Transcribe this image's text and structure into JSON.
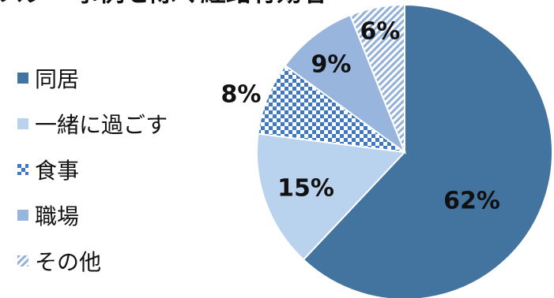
{
  "title": "スター事例を除く経路有効者",
  "chart_data": {
    "type": "pie",
    "title": "",
    "legend_position": "left",
    "start_angle_deg": 0,
    "direction": "clockwise",
    "slices": [
      {
        "label": "同居",
        "value": 62,
        "display": "62%",
        "color": "#43739f",
        "pattern": "solid"
      },
      {
        "label": "一緒に過ごす",
        "value": 15,
        "display": "15%",
        "color": "#b9d2ee",
        "pattern": "solid"
      },
      {
        "label": "食事",
        "value": 8,
        "display": "8%",
        "color": "#3f78c2",
        "pattern": "checker"
      },
      {
        "label": "職場",
        "value": 9,
        "display": "9%",
        "color": "#98b5de",
        "pattern": "solid"
      },
      {
        "label": "その他",
        "value": 6,
        "display": "6%",
        "color": "#93b0d8",
        "pattern": "diagonal"
      }
    ]
  }
}
